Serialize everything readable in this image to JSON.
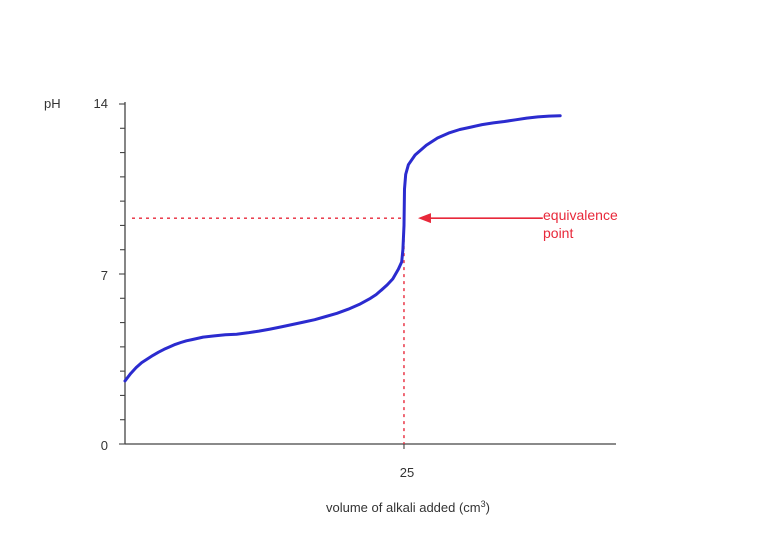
{
  "chart_data": {
    "type": "line",
    "title": "",
    "ylabel": "pH",
    "xlabel_prefix": "volume of alkali added (cm",
    "xlabel_sup": "3",
    "xlabel_suffix": ")",
    "xlim": [
      0,
      44
    ],
    "ylim": [
      0,
      14
    ],
    "y_ticks": [
      0,
      7,
      14
    ],
    "y_minor_step": 1,
    "x_ticks": [
      25
    ],
    "grid": false,
    "series": [
      {
        "color": "#2b2bcf",
        "points": [
          [
            0,
            2.6
          ],
          [
            0.5,
            2.9
          ],
          [
            1,
            3.15
          ],
          [
            1.5,
            3.35
          ],
          [
            2,
            3.5
          ],
          [
            2.5,
            3.65
          ],
          [
            3,
            3.78
          ],
          [
            3.5,
            3.9
          ],
          [
            4,
            4.0
          ],
          [
            4.5,
            4.1
          ],
          [
            5,
            4.18
          ],
          [
            5.5,
            4.25
          ],
          [
            6,
            4.3
          ],
          [
            7,
            4.4
          ],
          [
            8,
            4.45
          ],
          [
            9,
            4.5
          ],
          [
            10,
            4.52
          ],
          [
            11,
            4.58
          ],
          [
            12,
            4.65
          ],
          [
            13,
            4.73
          ],
          [
            14,
            4.82
          ],
          [
            15,
            4.92
          ],
          [
            16,
            5.02
          ],
          [
            17,
            5.12
          ],
          [
            18,
            5.25
          ],
          [
            19,
            5.38
          ],
          [
            20,
            5.55
          ],
          [
            21,
            5.75
          ],
          [
            22,
            6.0
          ],
          [
            22.5,
            6.15
          ],
          [
            23,
            6.35
          ],
          [
            23.5,
            6.55
          ],
          [
            24,
            6.8
          ],
          [
            24.5,
            7.2
          ],
          [
            24.8,
            7.5
          ],
          [
            24.9,
            8.0
          ],
          [
            25.0,
            9.0
          ],
          [
            25.05,
            10.5
          ],
          [
            25.15,
            11.1
          ],
          [
            25.4,
            11.5
          ],
          [
            26,
            11.9
          ],
          [
            27,
            12.3
          ],
          [
            28,
            12.6
          ],
          [
            29,
            12.8
          ],
          [
            30,
            12.95
          ],
          [
            31,
            13.05
          ],
          [
            32,
            13.15
          ],
          [
            33,
            13.22
          ],
          [
            34,
            13.28
          ],
          [
            35,
            13.35
          ],
          [
            36,
            13.42
          ],
          [
            37,
            13.47
          ],
          [
            38,
            13.5
          ],
          [
            39,
            13.52
          ]
        ]
      }
    ],
    "equivalence": {
      "x": 25,
      "y": 9.3
    },
    "annotation": {
      "line1": "equivalence",
      "line2": "point",
      "color": "#e8283a",
      "text_x": 37.8,
      "text_y": 9.3
    }
  }
}
